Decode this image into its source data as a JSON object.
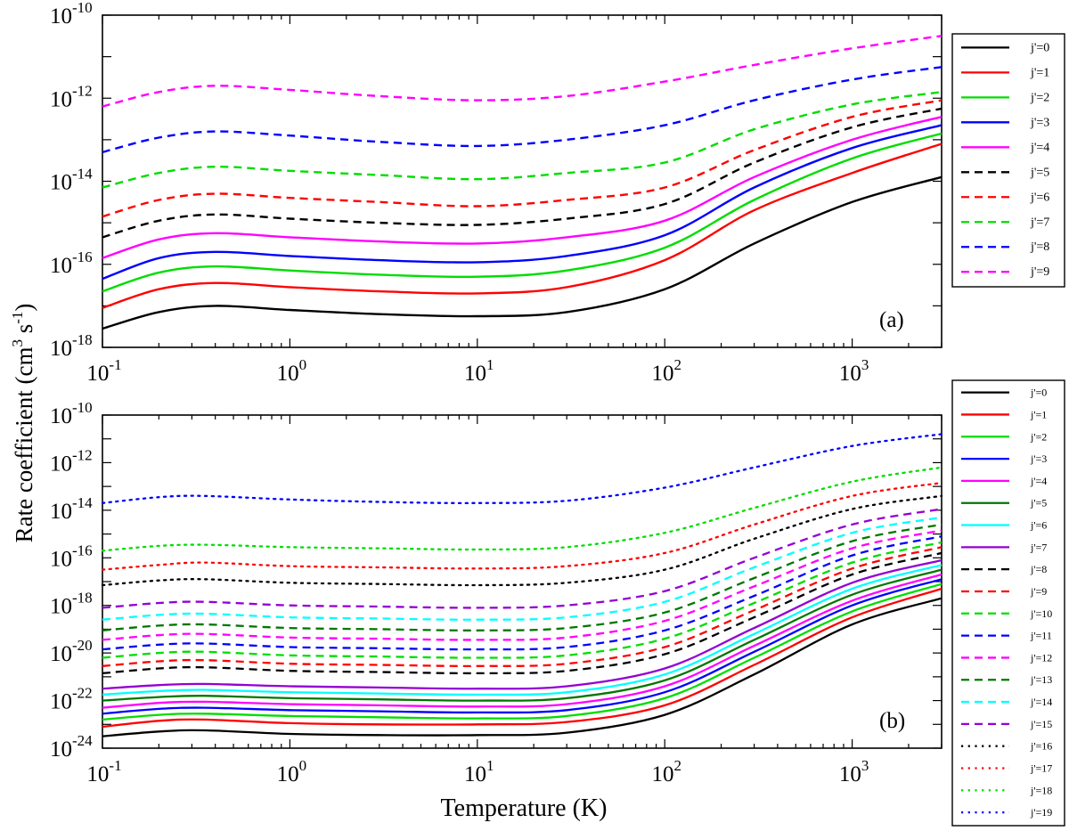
{
  "figure": {
    "ylabel": "Rate coefficient (cm",
    "ylabel_sup": "3",
    "ylabel_mid": " s",
    "ylabel_sup2": "-1",
    "ylabel_end": ")",
    "xlabel": "Temperature (K)"
  },
  "chart_data": [
    {
      "type": "line",
      "panel_label": "(a)",
      "xscale": "log",
      "yscale": "log",
      "xlim": [
        0.1,
        3000
      ],
      "ylim_exp": [
        -18,
        -10
      ],
      "xticks": [
        {
          "base": "10",
          "exp": "-1"
        },
        {
          "base": "10",
          "exp": "0"
        },
        {
          "base": "10",
          "exp": "1"
        },
        {
          "base": "10",
          "exp": "2"
        },
        {
          "base": "10",
          "exp": "3"
        }
      ],
      "yticks": [
        {
          "base": "10",
          "exp": "-18"
        },
        {
          "base": "10",
          "exp": "-16"
        },
        {
          "base": "10",
          "exp": "-14"
        },
        {
          "base": "10",
          "exp": "-12"
        },
        {
          "base": "10",
          "exp": "-10"
        }
      ],
      "legend_position": "right-outside",
      "x": [
        0.1,
        0.2,
        0.4,
        1,
        3,
        10,
        30,
        100,
        300,
        1000,
        3000
      ],
      "series": [
        {
          "name": "j'=0",
          "color": "#000000",
          "dash": "solid",
          "log10_values": [
            -17.55,
            -17.15,
            -17.0,
            -17.1,
            -17.2,
            -17.25,
            -17.15,
            -16.6,
            -15.5,
            -14.5,
            -13.9
          ]
        },
        {
          "name": "j'=1",
          "color": "#ff0000",
          "dash": "solid",
          "log10_values": [
            -17.05,
            -16.6,
            -16.45,
            -16.55,
            -16.65,
            -16.7,
            -16.55,
            -15.9,
            -14.7,
            -13.8,
            -13.1
          ]
        },
        {
          "name": "j'=2",
          "color": "#00dd00",
          "dash": "solid",
          "log10_values": [
            -16.65,
            -16.2,
            -16.05,
            -16.15,
            -16.25,
            -16.3,
            -16.15,
            -15.6,
            -14.45,
            -13.45,
            -12.85
          ]
        },
        {
          "name": "j'=3",
          "color": "#0000ff",
          "dash": "solid",
          "log10_values": [
            -16.35,
            -15.85,
            -15.7,
            -15.8,
            -15.9,
            -15.95,
            -15.8,
            -15.3,
            -14.15,
            -13.2,
            -12.65
          ]
        },
        {
          "name": "j'=4",
          "color": "#ff00ff",
          "dash": "solid",
          "log10_values": [
            -15.85,
            -15.4,
            -15.25,
            -15.35,
            -15.45,
            -15.5,
            -15.35,
            -14.95,
            -13.9,
            -13.0,
            -12.45
          ]
        },
        {
          "name": "j'=5",
          "color": "#000000",
          "dash": "dashed",
          "log10_values": [
            -15.35,
            -14.95,
            -14.8,
            -14.9,
            -15.0,
            -15.05,
            -14.9,
            -14.55,
            -13.55,
            -12.7,
            -12.25
          ]
        },
        {
          "name": "j'=6",
          "color": "#ff0000",
          "dash": "dashed",
          "log10_values": [
            -14.85,
            -14.45,
            -14.3,
            -14.4,
            -14.5,
            -14.6,
            -14.45,
            -14.15,
            -13.25,
            -12.45,
            -12.05
          ]
        },
        {
          "name": "j'=7",
          "color": "#00dd00",
          "dash": "dashed",
          "log10_values": [
            -14.15,
            -13.8,
            -13.65,
            -13.75,
            -13.85,
            -13.95,
            -13.8,
            -13.55,
            -12.75,
            -12.15,
            -11.85
          ]
        },
        {
          "name": "j'=8",
          "color": "#0000ff",
          "dash": "dashed",
          "log10_values": [
            -13.3,
            -12.95,
            -12.8,
            -12.9,
            -13.05,
            -13.15,
            -13.0,
            -12.65,
            -12.05,
            -11.55,
            -11.25
          ]
        },
        {
          "name": "j'=9",
          "color": "#ff00ff",
          "dash": "dashed",
          "log10_values": [
            -12.2,
            -11.85,
            -11.7,
            -11.8,
            -11.95,
            -12.05,
            -11.95,
            -11.6,
            -11.2,
            -10.8,
            -10.5
          ]
        }
      ]
    },
    {
      "type": "line",
      "panel_label": "(b)",
      "xscale": "log",
      "yscale": "log",
      "xlim": [
        0.1,
        3000
      ],
      "ylim_exp": [
        -24,
        -10
      ],
      "xticks": [
        {
          "base": "10",
          "exp": "-1"
        },
        {
          "base": "10",
          "exp": "0"
        },
        {
          "base": "10",
          "exp": "1"
        },
        {
          "base": "10",
          "exp": "2"
        },
        {
          "base": "10",
          "exp": "3"
        }
      ],
      "yticks": [
        {
          "base": "10",
          "exp": "-24"
        },
        {
          "base": "10",
          "exp": "-22"
        },
        {
          "base": "10",
          "exp": "-20"
        },
        {
          "base": "10",
          "exp": "-18"
        },
        {
          "base": "10",
          "exp": "-16"
        },
        {
          "base": "10",
          "exp": "-14"
        },
        {
          "base": "10",
          "exp": "-12"
        },
        {
          "base": "10",
          "exp": "-10"
        }
      ],
      "legend_position": "right-outside",
      "x": [
        0.1,
        0.2,
        0.35,
        1,
        3,
        10,
        30,
        100,
        300,
        1000,
        3000
      ],
      "series": [
        {
          "name": "j'=0",
          "color": "#000000",
          "dash": "solid",
          "log10_values": [
            -23.5,
            -23.3,
            -23.25,
            -23.4,
            -23.45,
            -23.45,
            -23.35,
            -22.6,
            -20.9,
            -18.8,
            -17.7
          ]
        },
        {
          "name": "j'=1",
          "color": "#ff0000",
          "dash": "solid",
          "log10_values": [
            -23.1,
            -22.85,
            -22.8,
            -22.95,
            -23.0,
            -23.0,
            -22.9,
            -22.2,
            -20.5,
            -18.5,
            -17.3
          ]
        },
        {
          "name": "j'=2",
          "color": "#00dd00",
          "dash": "solid",
          "log10_values": [
            -22.8,
            -22.6,
            -22.55,
            -22.65,
            -22.7,
            -22.75,
            -22.65,
            -21.9,
            -20.2,
            -18.25,
            -17.1
          ]
        },
        {
          "name": "j'=3",
          "color": "#0000ff",
          "dash": "solid",
          "log10_values": [
            -22.55,
            -22.35,
            -22.3,
            -22.4,
            -22.45,
            -22.5,
            -22.4,
            -21.65,
            -19.95,
            -18.0,
            -16.9
          ]
        },
        {
          "name": "j'=4",
          "color": "#ff00ff",
          "dash": "solid",
          "log10_values": [
            -22.3,
            -22.1,
            -22.05,
            -22.15,
            -22.2,
            -22.25,
            -22.15,
            -21.4,
            -19.7,
            -17.8,
            -16.7
          ]
        },
        {
          "name": "j'=5",
          "color": "#007700",
          "dash": "solid",
          "log10_values": [
            -22.0,
            -21.85,
            -21.8,
            -21.9,
            -21.95,
            -22.0,
            -21.9,
            -21.15,
            -19.45,
            -17.55,
            -16.5
          ]
        },
        {
          "name": "j'=6",
          "color": "#00ffff",
          "dash": "solid",
          "log10_values": [
            -21.75,
            -21.6,
            -21.55,
            -21.65,
            -21.7,
            -21.75,
            -21.65,
            -20.9,
            -19.2,
            -17.3,
            -16.3
          ]
        },
        {
          "name": "j'=7",
          "color": "#9400d3",
          "dash": "solid",
          "log10_values": [
            -21.5,
            -21.35,
            -21.3,
            -21.4,
            -21.45,
            -21.5,
            -21.4,
            -20.65,
            -18.95,
            -17.05,
            -16.1
          ]
        },
        {
          "name": "j'=8",
          "color": "#000000",
          "dash": "dashed",
          "log10_values": [
            -20.85,
            -20.65,
            -20.6,
            -20.75,
            -20.8,
            -20.85,
            -20.75,
            -20.05,
            -18.5,
            -16.7,
            -15.8
          ]
        },
        {
          "name": "j'=9",
          "color": "#ff0000",
          "dash": "dashed",
          "log10_values": [
            -20.55,
            -20.35,
            -20.3,
            -20.45,
            -20.5,
            -20.55,
            -20.45,
            -19.75,
            -18.2,
            -16.45,
            -15.55
          ]
        },
        {
          "name": "j'=10",
          "color": "#00dd00",
          "dash": "dashed",
          "log10_values": [
            -20.2,
            -20.0,
            -19.95,
            -20.1,
            -20.15,
            -20.2,
            -20.1,
            -19.4,
            -17.9,
            -16.2,
            -15.35
          ]
        },
        {
          "name": "j'=11",
          "color": "#0000ff",
          "dash": "dashed",
          "log10_values": [
            -19.85,
            -19.65,
            -19.6,
            -19.75,
            -19.8,
            -19.85,
            -19.75,
            -19.05,
            -17.6,
            -15.9,
            -15.1
          ]
        },
        {
          "name": "j'=12",
          "color": "#ff00ff",
          "dash": "dashed",
          "log10_values": [
            -19.45,
            -19.25,
            -19.2,
            -19.35,
            -19.4,
            -19.45,
            -19.35,
            -18.65,
            -17.2,
            -15.6,
            -14.85
          ]
        },
        {
          "name": "j'=13",
          "color": "#007700",
          "dash": "dashed",
          "log10_values": [
            -19.05,
            -18.85,
            -18.8,
            -18.95,
            -19.0,
            -19.05,
            -18.95,
            -18.3,
            -16.85,
            -15.3,
            -14.6
          ]
        },
        {
          "name": "j'=14",
          "color": "#00ffff",
          "dash": "dashed",
          "log10_values": [
            -18.6,
            -18.4,
            -18.35,
            -18.5,
            -18.55,
            -18.6,
            -18.5,
            -17.85,
            -16.4,
            -14.95,
            -14.3
          ]
        },
        {
          "name": "j'=15",
          "color": "#9400d3",
          "dash": "dashed",
          "log10_values": [
            -18.1,
            -17.9,
            -17.85,
            -18.0,
            -18.05,
            -18.1,
            -18.0,
            -17.4,
            -16.0,
            -14.6,
            -13.95
          ]
        },
        {
          "name": "j'=16",
          "color": "#000000",
          "dash": "dotted",
          "log10_values": [
            -17.15,
            -16.95,
            -16.9,
            -17.05,
            -17.1,
            -17.15,
            -17.05,
            -16.5,
            -15.2,
            -13.95,
            -13.4
          ]
        },
        {
          "name": "j'=17",
          "color": "#ff0000",
          "dash": "dotted",
          "log10_values": [
            -16.5,
            -16.3,
            -16.2,
            -16.35,
            -16.4,
            -16.45,
            -16.35,
            -15.8,
            -14.6,
            -13.4,
            -12.85
          ]
        },
        {
          "name": "j'=18",
          "color": "#00dd00",
          "dash": "dotted",
          "log10_values": [
            -15.7,
            -15.5,
            -15.45,
            -15.55,
            -15.6,
            -15.65,
            -15.55,
            -14.95,
            -13.9,
            -12.8,
            -12.2
          ]
        },
        {
          "name": "j'=19",
          "color": "#0000ff",
          "dash": "dotted",
          "log10_values": [
            -13.7,
            -13.45,
            -13.4,
            -13.55,
            -13.65,
            -13.7,
            -13.6,
            -13.05,
            -12.2,
            -11.3,
            -10.8
          ]
        }
      ]
    }
  ]
}
